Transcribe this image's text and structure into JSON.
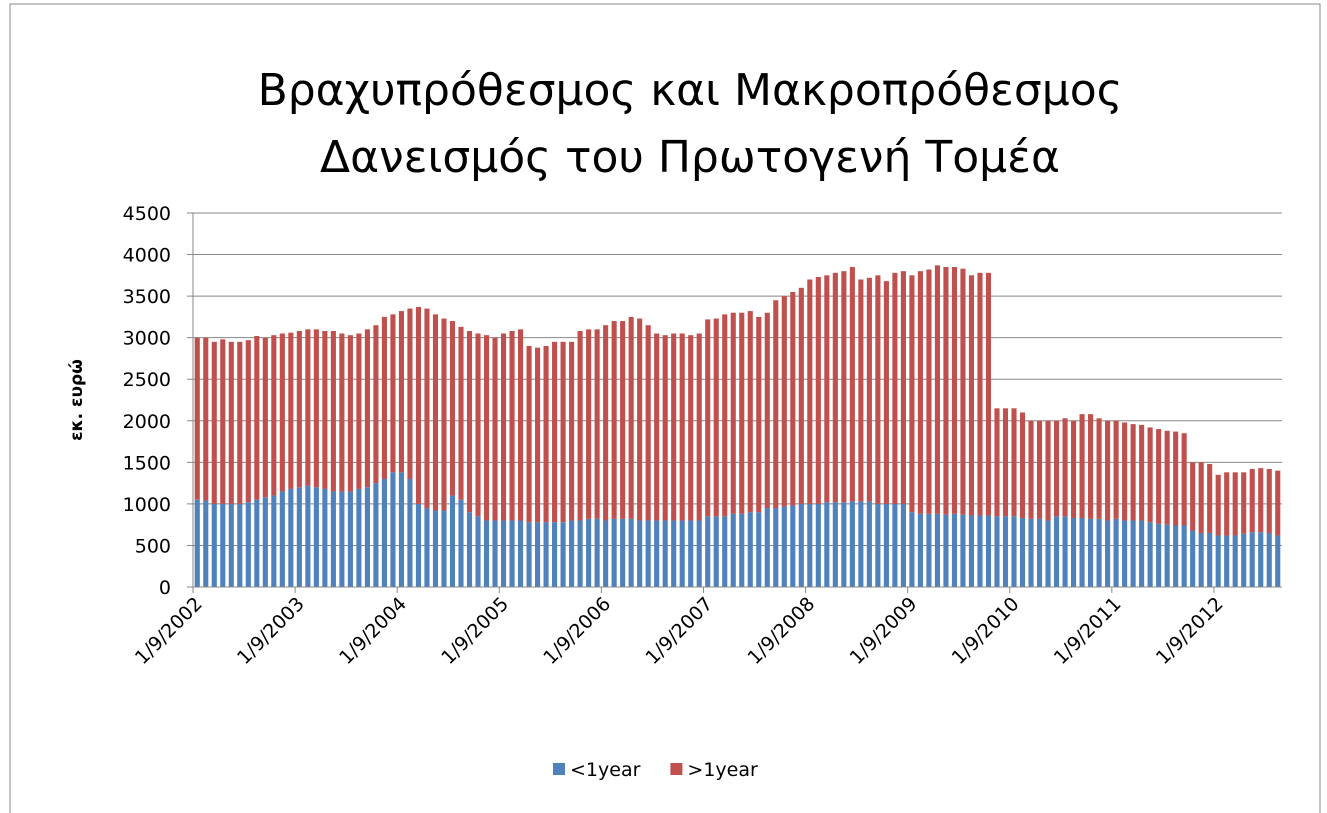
{
  "chart_data": {
    "type": "stacked_bar",
    "title": [
      "Βραχυπρόθεσμος και Μακροπρόθεσμος",
      "Δανεισμός του Πρωτογενή Τομέα"
    ],
    "y_label": "εκ. ευρώ",
    "categories": [
      "1/9/2002",
      null,
      null,
      null,
      null,
      null,
      null,
      null,
      null,
      null,
      null,
      null,
      "1/9/2003",
      null,
      null,
      null,
      null,
      null,
      null,
      null,
      null,
      null,
      null,
      null,
      "1/9/2004",
      null,
      null,
      null,
      null,
      null,
      null,
      null,
      null,
      null,
      null,
      null,
      "1/9/2005",
      null,
      null,
      null,
      null,
      null,
      null,
      null,
      null,
      null,
      null,
      null,
      "1/9/2006",
      null,
      null,
      null,
      null,
      null,
      null,
      null,
      null,
      null,
      null,
      null,
      "1/9/2007",
      null,
      null,
      null,
      null,
      null,
      null,
      null,
      null,
      null,
      null,
      null,
      "1/9/2008",
      null,
      null,
      null,
      null,
      null,
      null,
      null,
      null,
      null,
      null,
      null,
      "1/9/2009",
      null,
      null,
      null,
      null,
      null,
      null,
      null,
      null,
      null,
      null,
      null,
      "1/9/2010",
      null,
      null,
      null,
      null,
      null,
      null,
      null,
      null,
      null,
      null,
      null,
      "1/9/2011",
      null,
      null,
      null,
      null,
      null,
      null,
      null,
      null,
      null,
      null,
      null,
      "1/9/2012",
      null,
      null,
      null,
      null,
      null,
      null,
      null
    ],
    "series": [
      {
        "name": "<1year",
        "color": "#4f81bd",
        "values": [
          1050,
          1040,
          1000,
          1000,
          1000,
          1000,
          1020,
          1050,
          1080,
          1100,
          1150,
          1180,
          1200,
          1220,
          1200,
          1180,
          1150,
          1150,
          1150,
          1180,
          1200,
          1250,
          1300,
          1380,
          1380,
          1300,
          1000,
          950,
          920,
          920,
          1100,
          1050,
          900,
          850,
          800,
          800,
          800,
          800,
          800,
          780,
          780,
          780,
          780,
          780,
          800,
          800,
          820,
          820,
          800,
          820,
          820,
          820,
          800,
          800,
          800,
          800,
          800,
          800,
          800,
          800,
          850,
          850,
          850,
          880,
          880,
          900,
          900,
          950,
          950,
          970,
          980,
          1000,
          1000,
          1000,
          1020,
          1020,
          1020,
          1030,
          1030,
          1030,
          1000,
          1000,
          1000,
          1000,
          900,
          880,
          880,
          880,
          870,
          880,
          870,
          860,
          860,
          860,
          850,
          850,
          850,
          830,
          820,
          820,
          800,
          850,
          850,
          830,
          830,
          820,
          820,
          800,
          820,
          800,
          800,
          800,
          780,
          760,
          750,
          740,
          740,
          680,
          650,
          650,
          620,
          620,
          620,
          640,
          660,
          660,
          650,
          620
        ]
      },
      {
        "name": ">1year",
        "color": "#c0504d",
        "values": [
          1950,
          1960,
          1950,
          1980,
          1950,
          1950,
          1950,
          1970,
          1920,
          1930,
          1900,
          1880,
          1880,
          1880,
          1900,
          1900,
          1930,
          1900,
          1880,
          1870,
          1900,
          1900,
          1950,
          1900,
          1940,
          2050,
          2370,
          2400,
          2360,
          2310,
          2100,
          2080,
          2180,
          2200,
          2230,
          2200,
          2250,
          2280,
          2300,
          2120,
          2100,
          2120,
          2170,
          2170,
          2150,
          2280,
          2280,
          2280,
          2350,
          2380,
          2380,
          2430,
          2430,
          2350,
          2250,
          2230,
          2250,
          2250,
          2230,
          2250,
          2370,
          2380,
          2430,
          2420,
          2420,
          2420,
          2350,
          2350,
          2500,
          2530,
          2570,
          2600,
          2700,
          2730,
          2730,
          2760,
          2780,
          2820,
          2670,
          2690,
          2750,
          2680,
          2780,
          2800,
          2850,
          2920,
          2940,
          2990,
          2980,
          2970,
          2960,
          2890,
          2920,
          2920,
          1300,
          1300,
          1300,
          1270,
          1180,
          1180,
          1200,
          1150,
          1180,
          1170,
          1250,
          1260,
          1210,
          1200,
          1180,
          1180,
          1160,
          1150,
          1140,
          1140,
          1130,
          1130,
          1110,
          820,
          850,
          830,
          730,
          760,
          760,
          740,
          760,
          770,
          770,
          780
        ]
      }
    ],
    "ylim": [
      0,
      4500
    ],
    "yticks": [
      0,
      500,
      1000,
      1500,
      2000,
      2500,
      3000,
      3500,
      4000,
      4500
    ],
    "grid": true,
    "legend": "bottom"
  }
}
